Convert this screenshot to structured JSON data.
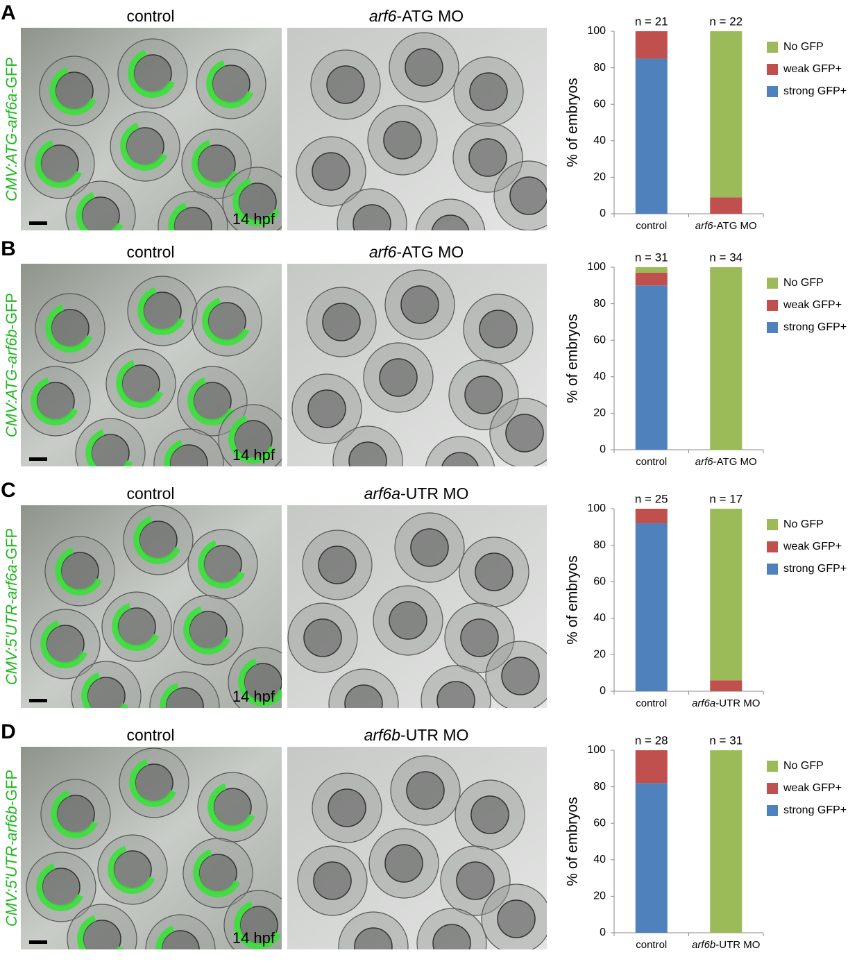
{
  "panels": [
    {
      "letter": "A",
      "construct": "CMV:ATG-arf6a-GFP",
      "left_label": "control",
      "right_label": "arf6-ATG MO",
      "stage": "14 hpf"
    },
    {
      "letter": "B",
      "construct": "CMV:ATG-arf6b-GFP",
      "left_label": "control",
      "right_label": "arf6-ATG MO",
      "stage": "14 hpf"
    },
    {
      "letter": "C",
      "construct": "CMV:5'UTR-arf6a-GFP",
      "left_label": "control",
      "right_label": "arf6a-UTR MO",
      "stage": "14 hpf"
    },
    {
      "letter": "D",
      "construct": "CMV:5'UTR-arf6b-GFP",
      "left_label": "control",
      "right_label": "arf6b-UTR MO",
      "stage": "14 hpf"
    }
  ],
  "chart_data": [
    {
      "type": "stacked_bar",
      "y_label": "% of embryos",
      "categories": [
        "control",
        "arf6-ATG MO"
      ],
      "annotations": [
        "n = 21",
        "n = 22"
      ],
      "ylim": [
        0,
        100
      ],
      "yticks": [
        0,
        20,
        40,
        60,
        80,
        100
      ],
      "series": [
        {
          "name": "strong GFP+",
          "color": "#4f81bd",
          "values": [
            85,
            0
          ]
        },
        {
          "name": "weak GFP+",
          "color": "#c0504d",
          "values": [
            15,
            9
          ]
        },
        {
          "name": "No GFP",
          "color": "#9bbb59",
          "values": [
            0,
            91
          ]
        }
      ]
    },
    {
      "type": "stacked_bar",
      "y_label": "% of embryos",
      "categories": [
        "control",
        "arf6-ATG MO"
      ],
      "annotations": [
        "n = 31",
        "n = 34"
      ],
      "ylim": [
        0,
        100
      ],
      "yticks": [
        0,
        20,
        40,
        60,
        80,
        100
      ],
      "series": [
        {
          "name": "strong GFP+",
          "color": "#4f81bd",
          "values": [
            90,
            0
          ]
        },
        {
          "name": "weak GFP+",
          "color": "#c0504d",
          "values": [
            7,
            0
          ]
        },
        {
          "name": "No GFP",
          "color": "#9bbb59",
          "values": [
            3,
            100
          ]
        }
      ]
    },
    {
      "type": "stacked_bar",
      "y_label": "% of embryos",
      "categories": [
        "control",
        "arf6a-UTR MO"
      ],
      "annotations": [
        "n = 25",
        "n = 17"
      ],
      "ylim": [
        0,
        100
      ],
      "yticks": [
        0,
        20,
        40,
        60,
        80,
        100
      ],
      "series": [
        {
          "name": "strong GFP+",
          "color": "#4f81bd",
          "values": [
            92,
            0
          ]
        },
        {
          "name": "weak GFP+",
          "color": "#c0504d",
          "values": [
            8,
            6
          ]
        },
        {
          "name": "No GFP",
          "color": "#9bbb59",
          "values": [
            0,
            94
          ]
        }
      ]
    },
    {
      "type": "stacked_bar",
      "y_label": "% of embryos",
      "categories": [
        "control",
        "arf6b-UTR MO"
      ],
      "annotations": [
        "n = 28",
        "n = 31"
      ],
      "ylim": [
        0,
        100
      ],
      "yticks": [
        0,
        20,
        40,
        60,
        80,
        100
      ],
      "series": [
        {
          "name": "strong GFP+",
          "color": "#4f81bd",
          "values": [
            82,
            0
          ]
        },
        {
          "name": "weak GFP+",
          "color": "#c0504d",
          "values": [
            18,
            0
          ]
        },
        {
          "name": "No GFP",
          "color": "#9bbb59",
          "values": [
            0,
            100
          ]
        }
      ]
    }
  ]
}
